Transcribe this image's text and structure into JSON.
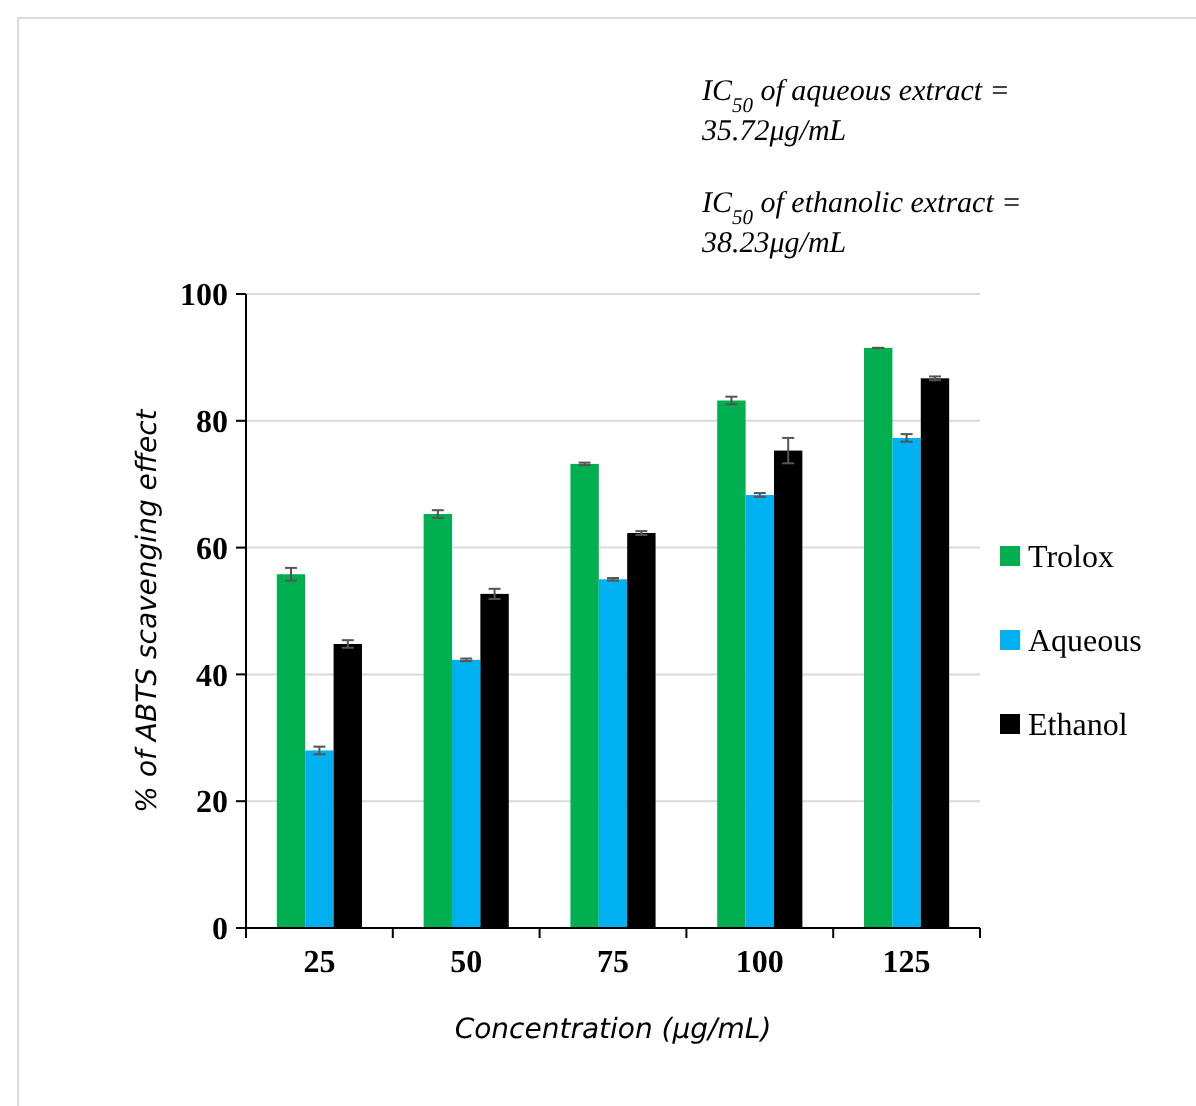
{
  "chart_data": {
    "type": "bar",
    "xlabel": "Concentration (μg/mL)",
    "ylabel": "% of ABTS scavenging effect",
    "categories": [
      "25",
      "50",
      "75",
      "100",
      "125"
    ],
    "series": [
      {
        "name": "Trolox",
        "color": "#00b050",
        "values": [
          55.8,
          65.3,
          73.2,
          83.2,
          91.5
        ],
        "errors": [
          1,
          0.6,
          0.2,
          0.6,
          0
        ]
      },
      {
        "name": "Aqueous",
        "color": "#00b0f0",
        "values": [
          28.0,
          42.3,
          55.0,
          68.3,
          77.3
        ],
        "errors": [
          0.6,
          0.2,
          0.2,
          0.3,
          0.6
        ]
      },
      {
        "name": "Ethanol",
        "color": "#000000",
        "values": [
          44.8,
          52.7,
          62.3,
          75.3,
          86.7
        ],
        "errors": [
          0.6,
          0.8,
          0.3,
          2,
          0.3
        ]
      }
    ],
    "ylim": [
      0,
      100
    ],
    "yticks": [
      0,
      20,
      40,
      60,
      80,
      100
    ],
    "grid": "y",
    "legend": "right",
    "annotations": [
      "IC$_{50}$ of aqueous extract = 35.72μg/mL",
      "IC$_{50}$ of ethanolic extract = 38.23μg/mL"
    ]
  }
}
